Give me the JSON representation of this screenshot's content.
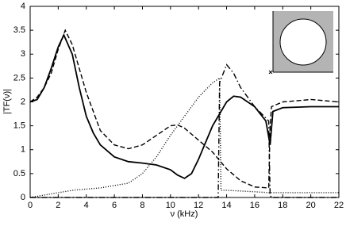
{
  "chart_data": {
    "type": "line",
    "xlabel": "ν (kHz)",
    "ylabel": "|TF(ν)|",
    "xlim": [
      0,
      22
    ],
    "xticks": [
      0,
      2,
      4,
      6,
      8,
      10,
      12,
      14,
      16,
      18,
      20,
      22
    ],
    "ylim": [
      0,
      4
    ],
    "yticks": [
      0,
      0.5,
      1,
      1.5,
      2,
      2.5,
      3,
      3.5,
      4
    ],
    "grid": false,
    "series": [
      {
        "color": "#000000",
        "style": "solid",
        "x": [
          0,
          0.5,
          1,
          1.5,
          2,
          2.4,
          3,
          3.5,
          4,
          4.5,
          5,
          6,
          7,
          8,
          9,
          10,
          10.5,
          11,
          11.5,
          12,
          13,
          14,
          14.5,
          15,
          16,
          16.8,
          17.1,
          17.3,
          18,
          20,
          22
        ],
        "values": [
          2.0,
          2.05,
          2.3,
          2.7,
          3.15,
          3.4,
          3.0,
          2.3,
          1.7,
          1.35,
          1.1,
          0.85,
          0.75,
          0.72,
          0.68,
          0.58,
          0.47,
          0.4,
          0.5,
          0.8,
          1.5,
          2.0,
          2.12,
          2.1,
          1.9,
          1.6,
          1.1,
          1.8,
          1.88,
          1.9,
          1.9
        ]
      },
      {
        "color": "#000000",
        "style": "dashed",
        "x": [
          0,
          0.5,
          1,
          1.5,
          2,
          2.5,
          3,
          3.5,
          4,
          5,
          6,
          7,
          8,
          9,
          10,
          10.5,
          11,
          12,
          13,
          14,
          15,
          16,
          17,
          17.1,
          17.2,
          18,
          20,
          22
        ],
        "values": [
          2.0,
          2.1,
          2.3,
          2.6,
          3.1,
          3.5,
          3.2,
          2.7,
          2.2,
          1.4,
          1.1,
          1.02,
          1.1,
          1.3,
          1.5,
          1.52,
          1.45,
          1.2,
          0.95,
          0.6,
          0.35,
          0.22,
          0.2,
          1.5,
          1.9,
          2.0,
          2.05,
          2.0
        ]
      },
      {
        "color": "#000000",
        "style": "dashdot",
        "x": [
          0,
          13.4,
          13.5,
          14,
          14.5,
          15,
          16,
          17,
          17.1,
          17.2,
          22
        ],
        "values": [
          0,
          0,
          2.4,
          2.78,
          2.6,
          2.3,
          1.9,
          1.6,
          0.05,
          0,
          0
        ]
      },
      {
        "color": "#000000",
        "style": "dotted",
        "x": [
          0,
          1,
          2,
          3,
          5,
          7,
          8,
          9,
          10,
          11,
          12,
          13,
          13.5,
          13.6,
          14,
          16,
          17,
          18,
          22
        ],
        "values": [
          0,
          0.05,
          0.1,
          0.15,
          0.2,
          0.3,
          0.5,
          0.85,
          1.3,
          1.7,
          2.1,
          2.4,
          2.5,
          0.15,
          0.15,
          0.12,
          0.1,
          0.1,
          0.1
        ]
      }
    ]
  }
}
